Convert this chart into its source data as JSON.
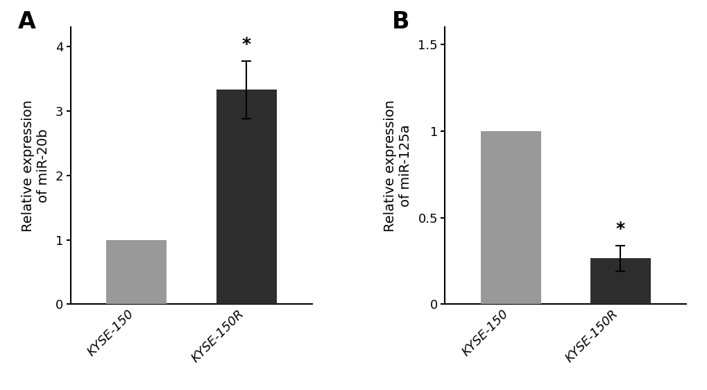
{
  "panel_A": {
    "label": "A",
    "categories": [
      "KYSE-150",
      "KYSE-150R"
    ],
    "values": [
      1.0,
      3.33
    ],
    "errors": [
      0.0,
      0.45
    ],
    "bar_colors": [
      "#999999",
      "#2d2d2d"
    ],
    "ylabel_line1": "Relative expression",
    "ylabel_line2": "of miR-20b",
    "ylim": [
      0,
      4.3
    ],
    "yticks": [
      0,
      1,
      2,
      3,
      4
    ],
    "sig_bar_idx": 1,
    "sig_sym": "*"
  },
  "panel_B": {
    "label": "B",
    "categories": [
      "KYSE-150",
      "KYSE-150R"
    ],
    "values": [
      1.0,
      0.265
    ],
    "errors": [
      0.0,
      0.075
    ],
    "bar_colors": [
      "#999999",
      "#2d2d2d"
    ],
    "ylabel_line1": "Relative expression",
    "ylabel_line2": "of miR-125a",
    "ylim": [
      0,
      1.6
    ],
    "yticks": [
      0,
      0.5,
      1.0,
      1.5
    ],
    "sig_bar_idx": 1,
    "sig_sym": "*"
  },
  "background_color": "#ffffff",
  "panel_label_fontsize": 24,
  "tick_fontsize": 13,
  "ylabel_fontsize": 14,
  "bar_width": 0.55,
  "capsize": 5,
  "star_fontsize": 18
}
